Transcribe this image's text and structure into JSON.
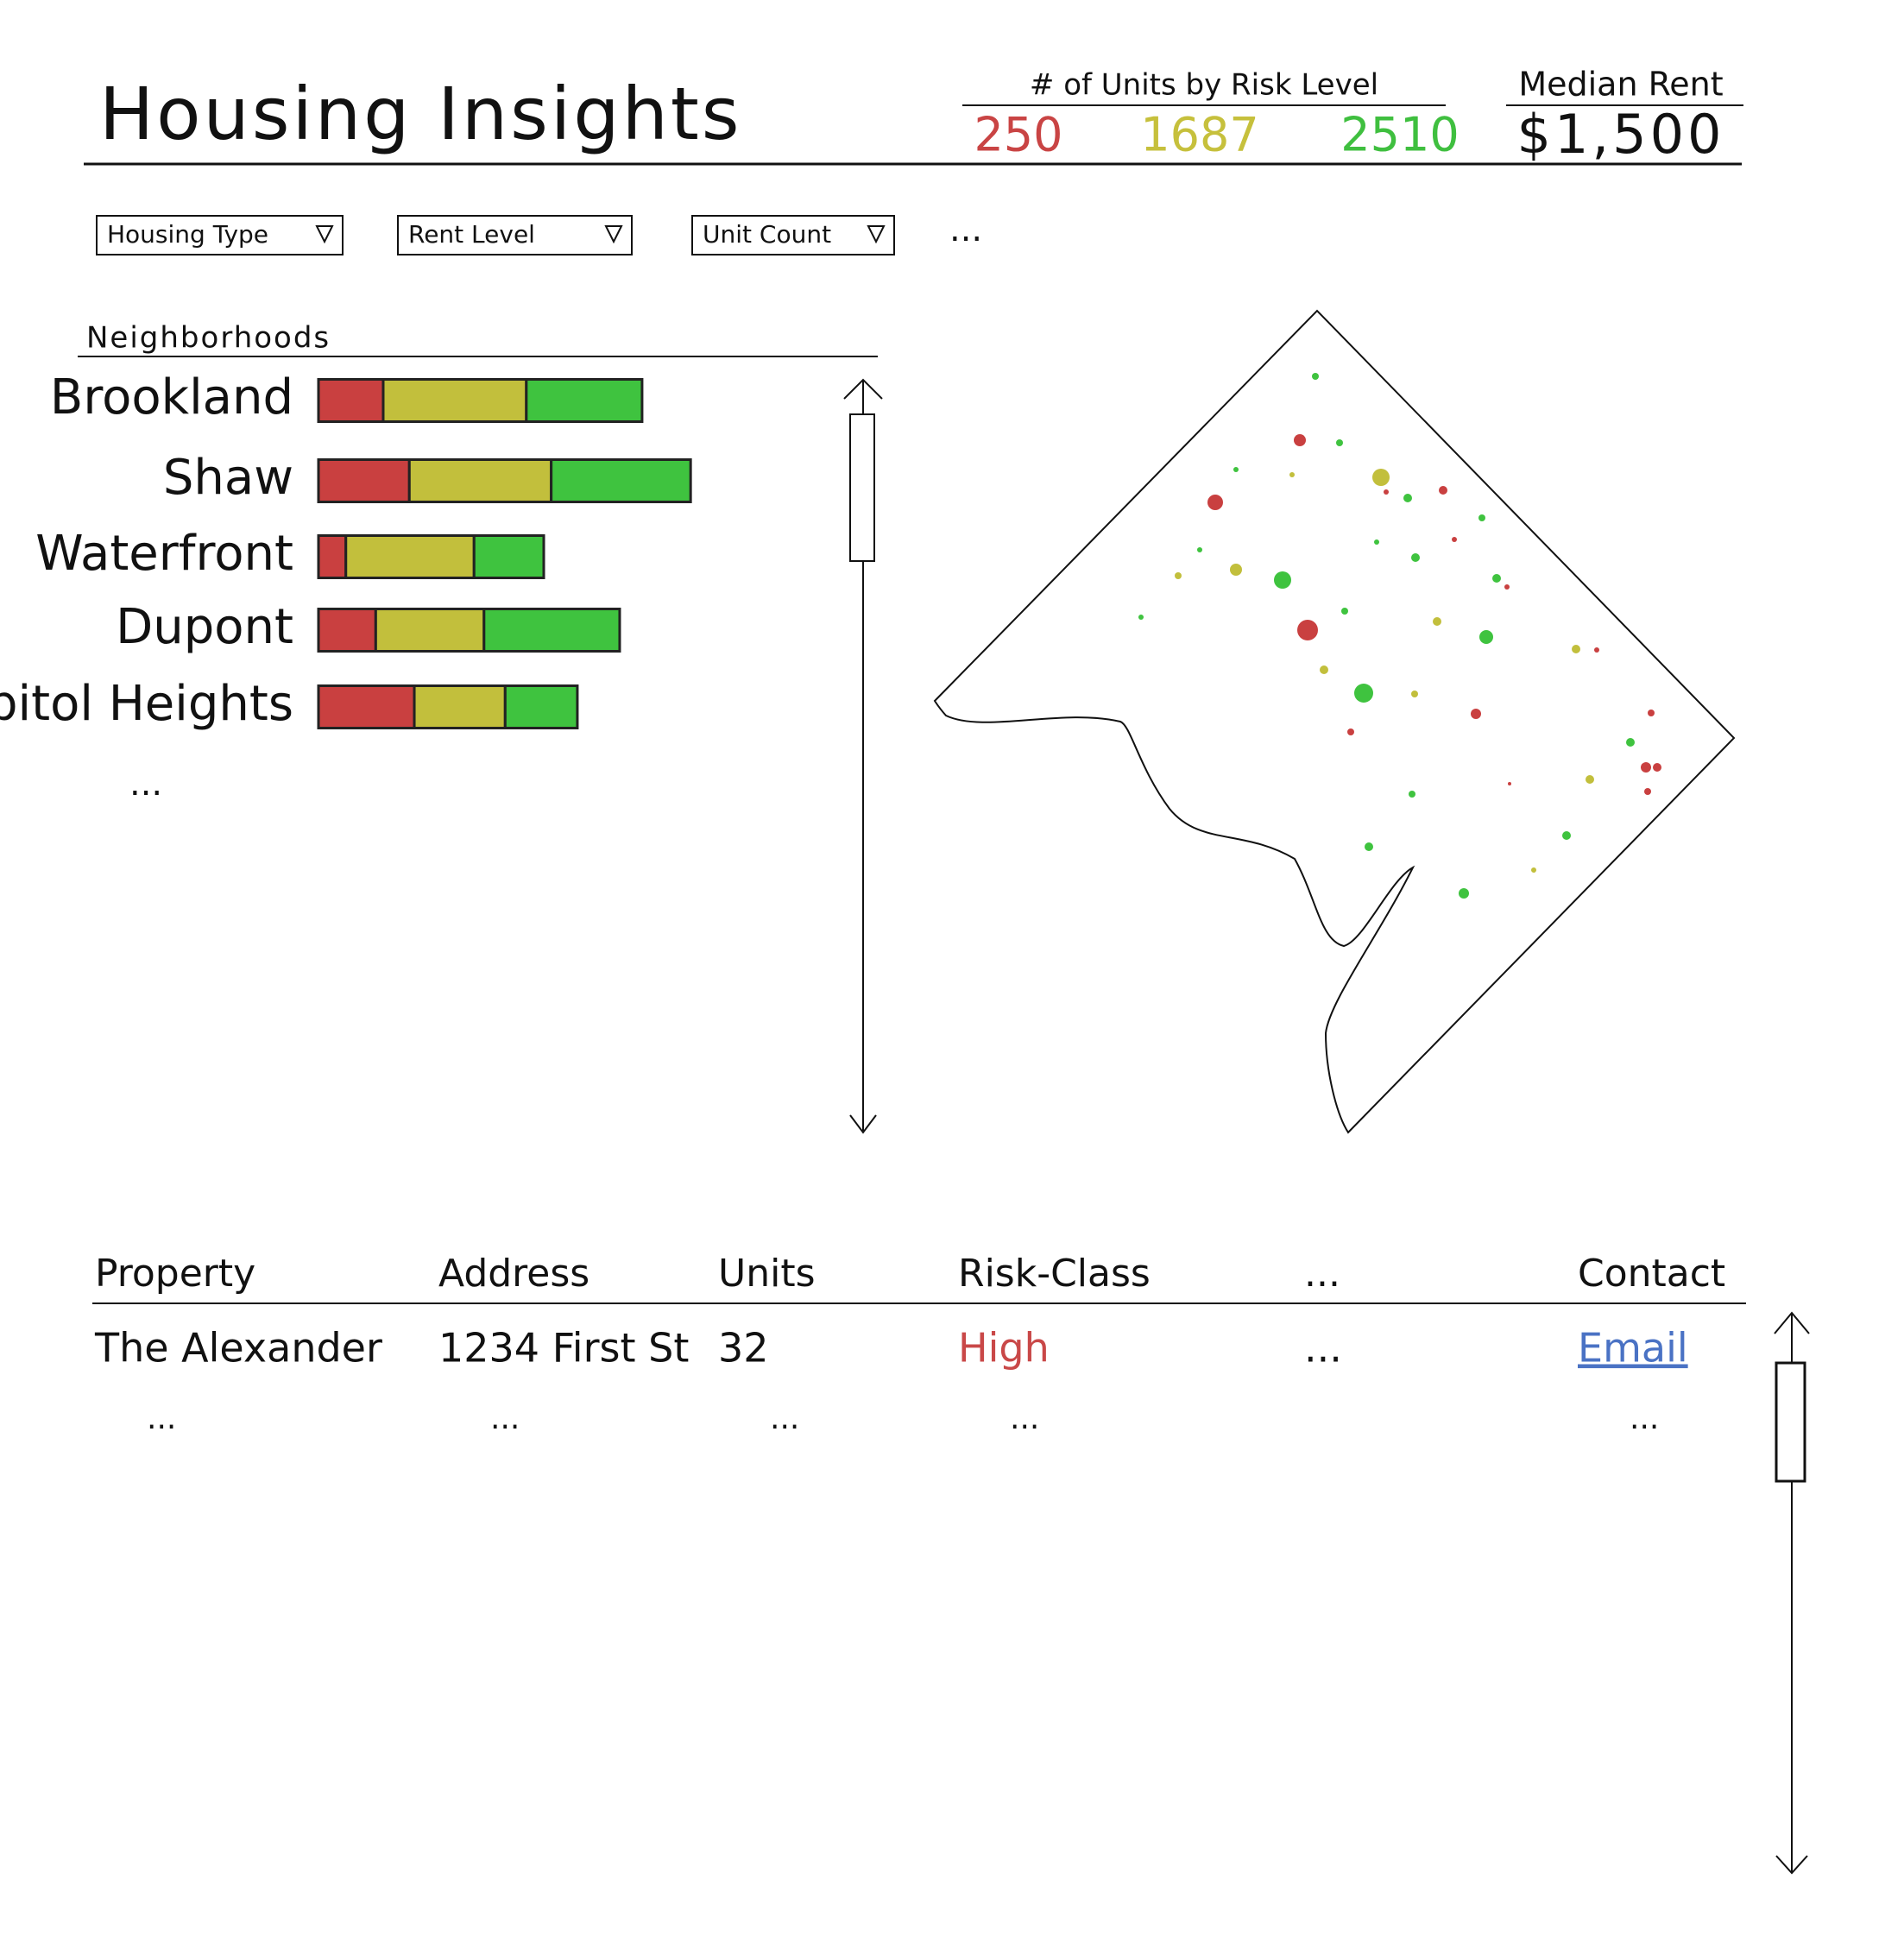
{
  "header": {
    "title": "Housing Insights",
    "risk_summary": {
      "label": "# of Units by Risk Level",
      "values": [
        250,
        1687,
        2510
      ],
      "colors": [
        "#c94444",
        "#c6c03c",
        "#3fbf3f"
      ]
    },
    "median_rent": {
      "label": "Median Rent",
      "value": "$1,500"
    }
  },
  "filters": [
    "Housing Type",
    "Rent Level",
    "Unit Count"
  ],
  "filters_more": "...",
  "neighborhoods": {
    "title": "Neighborhoods",
    "colors": [
      "#c94040",
      "#c2bf3c",
      "#3fc33f"
    ],
    "rows": [
      {
        "name": "Brookland",
        "segments": [
          52,
          115,
          93
        ]
      },
      {
        "name": "Shaw",
        "segments": [
          73,
          114,
          112
        ]
      },
      {
        "name": "Waterfront",
        "segments": [
          22,
          103,
          56
        ]
      },
      {
        "name": "Dupont",
        "segments": [
          46,
          87,
          109
        ]
      },
      {
        "name": "Capitol Heights",
        "segments": [
          77,
          73,
          58
        ]
      }
    ],
    "more": "..."
  },
  "table": {
    "columns": [
      "Property",
      "Address",
      "Units",
      "Risk-Class",
      "...",
      "Contact"
    ],
    "rows": [
      [
        "The Alexander",
        "1234 First St",
        32,
        "High",
        "...",
        "Email"
      ],
      [
        "...",
        "...",
        "...",
        "...",
        null,
        "..."
      ]
    ]
  }
}
